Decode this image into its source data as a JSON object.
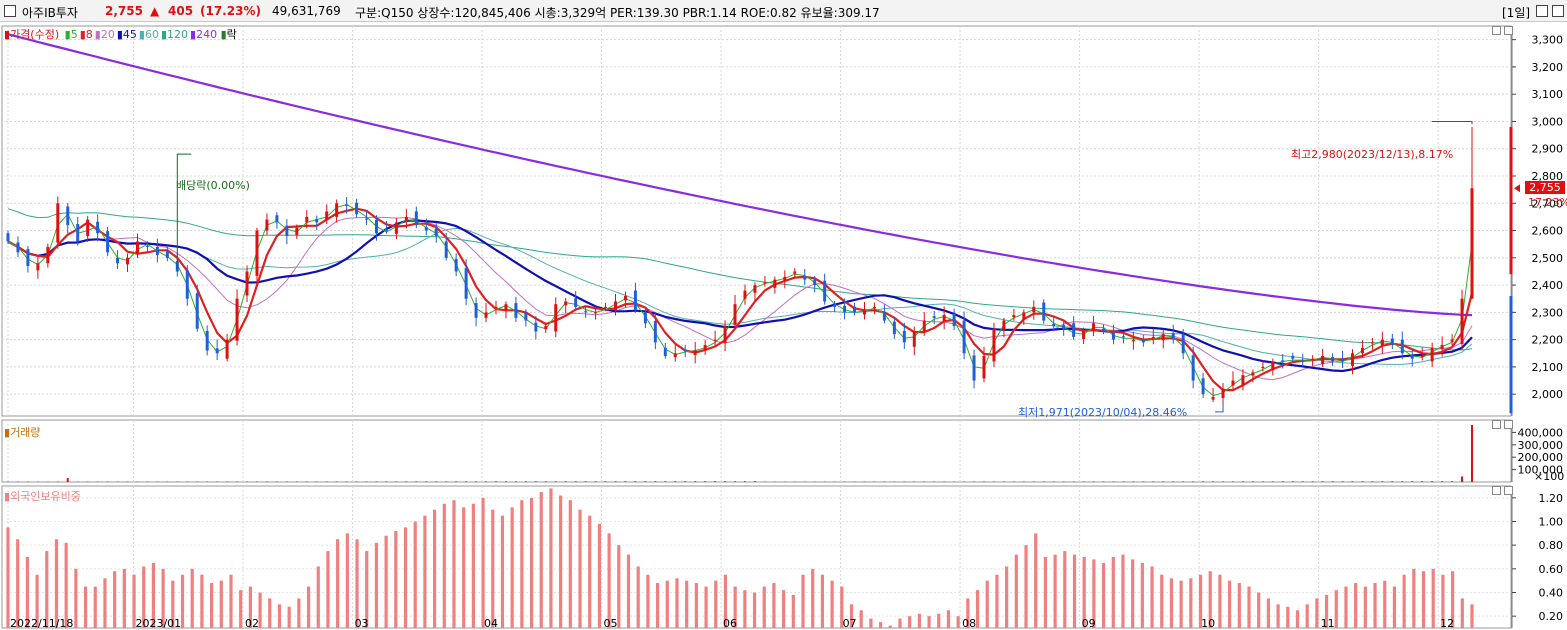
{
  "header": {
    "stock_name": "아주IB투자",
    "price": "2,755",
    "change_arrow": "▲",
    "change": "405",
    "change_pct": "(17.23%)",
    "volume": "49,631,769",
    "summary": "구분:Q150 상장수:120,845,406 시총:3,329억 PER:139.30 PBR:1.14 ROE:0.82 유보율:309.17",
    "period": "[1일]"
  },
  "legend": {
    "price_label": "가격(수정)",
    "ma": [
      {
        "label": "5",
        "color": "#2db02d"
      },
      {
        "label": "8",
        "color": "#e02020"
      },
      {
        "label": "20",
        "color": "#c070c0"
      },
      {
        "label": "45",
        "color": "#1010b0"
      },
      {
        "label": "60",
        "color": "#50b0b0"
      },
      {
        "label": "120",
        "color": "#2ea88a"
      },
      {
        "label": "240",
        "color": "#8a2be2"
      }
    ],
    "ex_label": "락"
  },
  "annotations": {
    "dividend": "배당락(0.00%)",
    "high": "최고2,980(2023/12/13),8.17%",
    "low": "최저1,971(2023/10/04),28.46%",
    "last_price": "2,755",
    "last_pct": "17.23%"
  },
  "volume_pane": {
    "title": "거래량",
    "unit": "×100"
  },
  "foreign_pane": {
    "title": "외국인보유비중"
  },
  "colors": {
    "up": "#e01010",
    "down": "#1f5fd8",
    "volume": "#e01010",
    "foreign": "#f08080"
  },
  "chart_data": [
    {
      "type": "candlestick",
      "title": "가격(수정)",
      "x_tick_labels": [
        "2022/11/18",
        "2023/01",
        "02",
        "03",
        "04",
        "05",
        "06",
        "07",
        "08",
        "09",
        "10",
        "11",
        "12"
      ],
      "y_ticks": [
        2000,
        2100,
        2200,
        2300,
        2400,
        2500,
        2600,
        2700,
        2800,
        2900,
        3000,
        3100,
        3200,
        3300
      ],
      "ylim": [
        1920,
        3350
      ],
      "close_series": [
        2560,
        2520,
        2470,
        2480,
        2540,
        2700,
        2620,
        2560,
        2640,
        2590,
        2520,
        2480,
        2500,
        2560,
        2540,
        2510,
        2500,
        2450,
        2350,
        2240,
        2160,
        2150,
        2200,
        2350,
        2450,
        2600,
        2640,
        2630,
        2580,
        2610,
        2650,
        2630,
        2670,
        2700,
        2690,
        2660,
        2640,
        2590,
        2600,
        2630,
        2650,
        2620,
        2600,
        2580,
        2500,
        2450,
        2350,
        2280,
        2300,
        2320,
        2330,
        2280,
        2270,
        2230,
        2250,
        2330,
        2340,
        2320,
        2300,
        2300,
        2320,
        2340,
        2360,
        2310,
        2260,
        2190,
        2140,
        2150,
        2160,
        2160,
        2180,
        2200,
        2250,
        2330,
        2380,
        2400,
        2410,
        2420,
        2430,
        2450,
        2420,
        2400,
        2340,
        2320,
        2300,
        2300,
        2310,
        2320,
        2270,
        2220,
        2190,
        2230,
        2270,
        2280,
        2290,
        2250,
        2150,
        2050,
        2140,
        2240,
        2270,
        2290,
        2300,
        2320,
        2270,
        2250,
        2240,
        2210,
        2230,
        2260,
        2230,
        2200,
        2210,
        2200,
        2190,
        2210,
        2220,
        2200,
        2150,
        2050,
        2000,
        1990,
        2020,
        2050,
        2070,
        2080,
        2100,
        2120,
        2120,
        2130,
        2120,
        2130,
        2140,
        2120,
        2120,
        2150,
        2170,
        2190,
        2200,
        2180,
        2150,
        2130,
        2140,
        2170,
        2180,
        2200,
        2350,
        2755
      ],
      "high": 2980,
      "low": 1971,
      "last": 2755,
      "ma240_start": 3320,
      "ma240_end": 2290
    },
    {
      "type": "bar",
      "title": "거래량",
      "unit": "×100",
      "y_ticks": [
        100000,
        200000,
        300000,
        400000
      ],
      "ylim": [
        0,
        500000
      ],
      "spike_last": 460000,
      "spike_prev": 45000
    },
    {
      "type": "bar",
      "title": "외국인보유비중",
      "y_ticks": [
        0.2,
        0.4,
        0.6,
        0.8,
        1.0,
        1.2
      ],
      "ylim": [
        0.1,
        1.3
      ],
      "values": [
        0.95,
        0.85,
        0.7,
        0.55,
        0.75,
        0.85,
        0.82,
        0.6,
        0.45,
        0.45,
        0.52,
        0.58,
        0.6,
        0.55,
        0.62,
        0.65,
        0.6,
        0.5,
        0.55,
        0.6,
        0.55,
        0.48,
        0.5,
        0.55,
        0.42,
        0.45,
        0.4,
        0.35,
        0.3,
        0.28,
        0.35,
        0.45,
        0.62,
        0.75,
        0.85,
        0.9,
        0.85,
        0.75,
        0.82,
        0.88,
        0.92,
        0.95,
        1.0,
        1.05,
        1.1,
        1.15,
        1.18,
        1.12,
        1.15,
        1.2,
        1.1,
        1.05,
        1.12,
        1.18,
        1.2,
        1.25,
        1.28,
        1.22,
        1.18,
        1.1,
        1.05,
        0.98,
        0.9,
        0.8,
        0.72,
        0.62,
        0.55,
        0.48,
        0.5,
        0.52,
        0.5,
        0.48,
        0.45,
        0.5,
        0.55,
        0.45,
        0.42,
        0.4,
        0.45,
        0.48,
        0.42,
        0.38,
        0.55,
        0.6,
        0.55,
        0.5,
        0.45,
        0.3,
        0.25,
        0.18,
        0.15,
        0.12,
        0.18,
        0.2,
        0.22,
        0.2,
        0.22,
        0.25,
        0.2,
        0.35,
        0.42,
        0.5,
        0.55,
        0.62,
        0.72,
        0.8,
        0.9,
        0.7,
        0.72,
        0.75,
        0.72,
        0.7,
        0.68,
        0.65,
        0.7,
        0.72,
        0.68,
        0.65,
        0.62,
        0.55,
        0.52,
        0.5,
        0.52,
        0.55,
        0.58,
        0.55,
        0.5,
        0.48,
        0.45,
        0.4,
        0.35,
        0.3,
        0.28,
        0.25,
        0.3,
        0.35,
        0.38,
        0.42,
        0.45,
        0.48,
        0.45,
        0.48,
        0.5,
        0.45,
        0.55,
        0.6,
        0.58,
        0.6,
        0.55,
        0.58,
        0.35,
        0.3
      ]
    }
  ]
}
